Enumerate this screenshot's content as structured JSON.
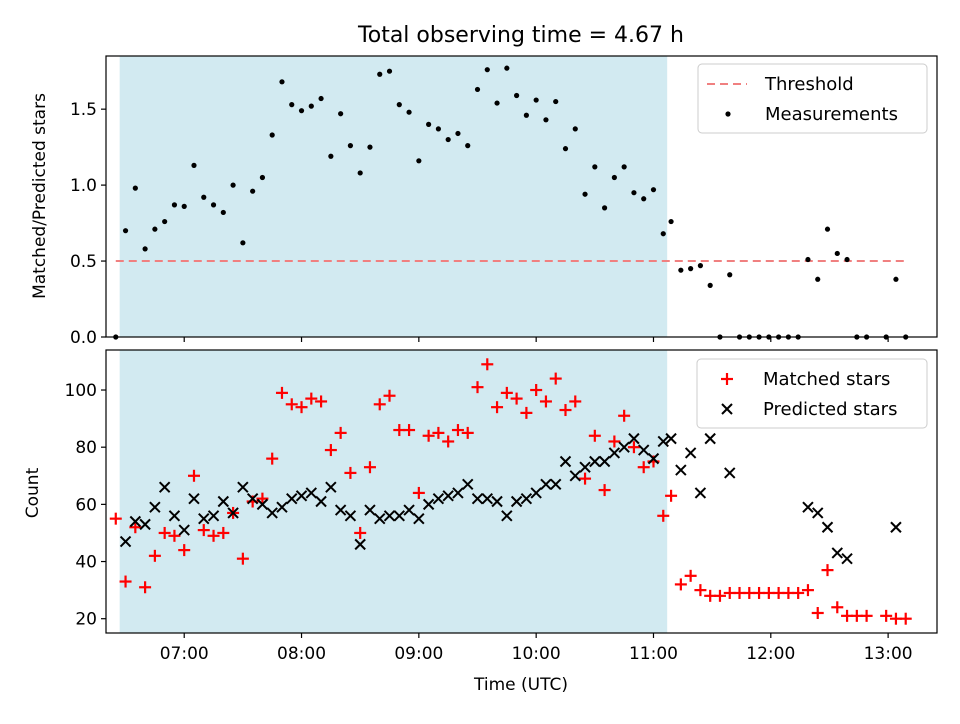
{
  "chart_data": {
    "type": "scatter",
    "title": "Total observing time = 4.67 h",
    "xlabel": "Time (UTC)",
    "xlim": [
      "06:20",
      "13:25"
    ],
    "x_tick_labels": [
      "07:00",
      "08:00",
      "09:00",
      "10:00",
      "11:00",
      "12:00",
      "13:00"
    ],
    "shaded_interval": {
      "start": "06:27",
      "end": "11:07",
      "color": "#add8e6"
    },
    "panels": [
      {
        "ylabel": "Matched/Predicted stars",
        "ylim": [
          0,
          1.85
        ],
        "y_tick_labels": [
          "0.0",
          "0.5",
          "1.0",
          "1.5"
        ],
        "threshold": {
          "name": "Threshold",
          "value": 0.5,
          "color": "#f08080",
          "style": "dashed"
        },
        "series": [
          {
            "name": "Measurements",
            "marker": "dot",
            "color": "#000000",
            "points": [
              [
                "06:25",
                0.0
              ],
              [
                "06:30",
                0.7
              ],
              [
                "06:35",
                0.98
              ],
              [
                "06:40",
                0.58
              ],
              [
                "06:45",
                0.71
              ],
              [
                "06:50",
                0.76
              ],
              [
                "06:55",
                0.87
              ],
              [
                "07:00",
                0.86
              ],
              [
                "07:05",
                1.13
              ],
              [
                "07:10",
                0.92
              ],
              [
                "07:15",
                0.87
              ],
              [
                "07:20",
                0.82
              ],
              [
                "07:25",
                1.0
              ],
              [
                "07:30",
                0.62
              ],
              [
                "07:35",
                0.96
              ],
              [
                "07:40",
                1.05
              ],
              [
                "07:45",
                1.33
              ],
              [
                "07:50",
                1.68
              ],
              [
                "07:55",
                1.53
              ],
              [
                "08:00",
                1.49
              ],
              [
                "08:05",
                1.52
              ],
              [
                "08:10",
                1.57
              ],
              [
                "08:15",
                1.19
              ],
              [
                "08:20",
                1.47
              ],
              [
                "08:25",
                1.26
              ],
              [
                "08:30",
                1.08
              ],
              [
                "08:35",
                1.25
              ],
              [
                "08:40",
                1.73
              ],
              [
                "08:45",
                1.75
              ],
              [
                "08:50",
                1.53
              ],
              [
                "08:55",
                1.48
              ],
              [
                "09:00",
                1.16
              ],
              [
                "09:05",
                1.4
              ],
              [
                "09:10",
                1.37
              ],
              [
                "09:15",
                1.3
              ],
              [
                "09:20",
                1.34
              ],
              [
                "09:25",
                1.26
              ],
              [
                "09:30",
                1.63
              ],
              [
                "09:35",
                1.76
              ],
              [
                "09:40",
                1.54
              ],
              [
                "09:45",
                1.77
              ],
              [
                "09:50",
                1.59
              ],
              [
                "09:55",
                1.46
              ],
              [
                "10:00",
                1.56
              ],
              [
                "10:05",
                1.43
              ],
              [
                "10:10",
                1.55
              ],
              [
                "10:15",
                1.24
              ],
              [
                "10:20",
                1.37
              ],
              [
                "10:25",
                0.94
              ],
              [
                "10:30",
                1.12
              ],
              [
                "10:35",
                0.85
              ],
              [
                "10:40",
                1.05
              ],
              [
                "10:45",
                1.12
              ],
              [
                "10:50",
                0.95
              ],
              [
                "10:55",
                0.91
              ],
              [
                "11:00",
                0.97
              ],
              [
                "11:05",
                0.68
              ],
              [
                "11:09",
                0.76
              ],
              [
                "11:14",
                0.44
              ],
              [
                "11:19",
                0.45
              ],
              [
                "11:24",
                0.47
              ],
              [
                "11:29",
                0.34
              ],
              [
                "11:34",
                0.0
              ],
              [
                "11:39",
                0.41
              ],
              [
                "11:44",
                0.0
              ],
              [
                "11:49",
                0.0
              ],
              [
                "11:54",
                0.0
              ],
              [
                "11:59",
                0.0
              ],
              [
                "12:04",
                0.0
              ],
              [
                "12:09",
                0.0
              ],
              [
                "12:14",
                0.0
              ],
              [
                "12:19",
                0.51
              ],
              [
                "12:24",
                0.38
              ],
              [
                "12:29",
                0.71
              ],
              [
                "12:34",
                0.55
              ],
              [
                "12:39",
                0.51
              ],
              [
                "12:44",
                0.0
              ],
              [
                "12:49",
                0.0
              ],
              [
                "12:59",
                0.0
              ],
              [
                "13:04",
                0.38
              ],
              [
                "13:09",
                0.0
              ]
            ]
          }
        ]
      },
      {
        "ylabel": "Count",
        "ylim": [
          15,
          114
        ],
        "y_tick_labels": [
          "20",
          "40",
          "60",
          "80",
          "100"
        ],
        "series": [
          {
            "name": "Matched stars",
            "marker": "plus",
            "color": "#ff0000",
            "points": [
              [
                "06:25",
                55
              ],
              [
                "06:30",
                33
              ],
              [
                "06:35",
                52
              ],
              [
                "06:40",
                31
              ],
              [
                "06:45",
                42
              ],
              [
                "06:50",
                50
              ],
              [
                "06:55",
                49
              ],
              [
                "07:00",
                44
              ],
              [
                "07:05",
                70
              ],
              [
                "07:10",
                51
              ],
              [
                "07:15",
                49
              ],
              [
                "07:20",
                50
              ],
              [
                "07:25",
                57
              ],
              [
                "07:30",
                41
              ],
              [
                "07:35",
                61
              ],
              [
                "07:40",
                62
              ],
              [
                "07:45",
                76
              ],
              [
                "07:50",
                99
              ],
              [
                "07:55",
                95
              ],
              [
                "08:00",
                94
              ],
              [
                "08:05",
                97
              ],
              [
                "08:10",
                96
              ],
              [
                "08:15",
                79
              ],
              [
                "08:20",
                85
              ],
              [
                "08:25",
                71
              ],
              [
                "08:30",
                50
              ],
              [
                "08:35",
                73
              ],
              [
                "08:40",
                95
              ],
              [
                "08:45",
                98
              ],
              [
                "08:50",
                86
              ],
              [
                "08:55",
                86
              ],
              [
                "09:00",
                64
              ],
              [
                "09:05",
                84
              ],
              [
                "09:10",
                85
              ],
              [
                "09:15",
                82
              ],
              [
                "09:20",
                86
              ],
              [
                "09:25",
                85
              ],
              [
                "09:30",
                101
              ],
              [
                "09:35",
                109
              ],
              [
                "09:40",
                94
              ],
              [
                "09:45",
                99
              ],
              [
                "09:50",
                97
              ],
              [
                "09:55",
                92
              ],
              [
                "10:00",
                100
              ],
              [
                "10:05",
                96
              ],
              [
                "10:10",
                104
              ],
              [
                "10:15",
                93
              ],
              [
                "10:20",
                96
              ],
              [
                "10:25",
                69
              ],
              [
                "10:30",
                84
              ],
              [
                "10:35",
                65
              ],
              [
                "10:40",
                82
              ],
              [
                "10:45",
                91
              ],
              [
                "10:50",
                80
              ],
              [
                "10:55",
                73
              ],
              [
                "11:00",
                75
              ],
              [
                "11:05",
                56
              ],
              [
                "11:09",
                63
              ],
              [
                "11:14",
                32
              ],
              [
                "11:19",
                35
              ],
              [
                "11:24",
                30
              ],
              [
                "11:29",
                28
              ],
              [
                "11:34",
                28
              ],
              [
                "11:39",
                29
              ],
              [
                "11:44",
                29
              ],
              [
                "11:49",
                29
              ],
              [
                "11:54",
                29
              ],
              [
                "11:59",
                29
              ],
              [
                "12:04",
                29
              ],
              [
                "12:09",
                29
              ],
              [
                "12:14",
                29
              ],
              [
                "12:19",
                30
              ],
              [
                "12:24",
                22
              ],
              [
                "12:29",
                37
              ],
              [
                "12:34",
                24
              ],
              [
                "12:39",
                21
              ],
              [
                "12:44",
                21
              ],
              [
                "12:49",
                21
              ],
              [
                "12:59",
                21
              ],
              [
                "13:04",
                20
              ],
              [
                "13:09",
                20
              ]
            ]
          },
          {
            "name": "Predicted stars",
            "marker": "x",
            "color": "#000000",
            "points": [
              [
                "06:30",
                47
              ],
              [
                "06:35",
                54
              ],
              [
                "06:40",
                53
              ],
              [
                "06:45",
                59
              ],
              [
                "06:50",
                66
              ],
              [
                "06:55",
                56
              ],
              [
                "07:00",
                51
              ],
              [
                "07:05",
                62
              ],
              [
                "07:10",
                55
              ],
              [
                "07:15",
                56
              ],
              [
                "07:20",
                61
              ],
              [
                "07:25",
                57
              ],
              [
                "07:30",
                66
              ],
              [
                "07:35",
                62
              ],
              [
                "07:40",
                60
              ],
              [
                "07:45",
                57
              ],
              [
                "07:50",
                59
              ],
              [
                "07:55",
                62
              ],
              [
                "08:00",
                63
              ],
              [
                "08:05",
                64
              ],
              [
                "08:10",
                61
              ],
              [
                "08:15",
                66
              ],
              [
                "08:20",
                58
              ],
              [
                "08:25",
                56
              ],
              [
                "08:30",
                46
              ],
              [
                "08:35",
                58
              ],
              [
                "08:40",
                55
              ],
              [
                "08:45",
                56
              ],
              [
                "08:50",
                56
              ],
              [
                "08:55",
                58
              ],
              [
                "09:00",
                55
              ],
              [
                "09:05",
                60
              ],
              [
                "09:10",
                62
              ],
              [
                "09:15",
                63
              ],
              [
                "09:20",
                64
              ],
              [
                "09:25",
                67
              ],
              [
                "09:30",
                62
              ],
              [
                "09:35",
                62
              ],
              [
                "09:40",
                61
              ],
              [
                "09:45",
                56
              ],
              [
                "09:50",
                61
              ],
              [
                "09:55",
                62
              ],
              [
                "10:00",
                64
              ],
              [
                "10:05",
                67
              ],
              [
                "10:10",
                67
              ],
              [
                "10:15",
                75
              ],
              [
                "10:20",
                70
              ],
              [
                "10:25",
                73
              ],
              [
                "10:30",
                75
              ],
              [
                "10:35",
                75
              ],
              [
                "10:40",
                78
              ],
              [
                "10:45",
                80
              ],
              [
                "10:50",
                83
              ],
              [
                "10:55",
                79
              ],
              [
                "11:00",
                76
              ],
              [
                "11:05",
                82
              ],
              [
                "11:09",
                83
              ],
              [
                "11:14",
                72
              ],
              [
                "11:19",
                78
              ],
              [
                "11:24",
                64
              ],
              [
                "11:29",
                83
              ],
              [
                "11:39",
                71
              ],
              [
                "12:19",
                59
              ],
              [
                "12:24",
                57
              ],
              [
                "12:29",
                52
              ],
              [
                "12:34",
                43
              ],
              [
                "12:39",
                41
              ],
              [
                "13:04",
                52
              ]
            ]
          }
        ]
      }
    ]
  },
  "figure": {
    "title": "Total observing time = 4.67 h",
    "xlabel": "Time (UTC)",
    "top_panel": {
      "ylabel": "Matched/Predicted stars",
      "legend": {
        "threshold_label": "Threshold",
        "measurements_label": "Measurements"
      }
    },
    "bottom_panel": {
      "ylabel": "Count",
      "legend": {
        "matched_label": "Matched stars",
        "predicted_label": "Predicted stars"
      }
    }
  }
}
